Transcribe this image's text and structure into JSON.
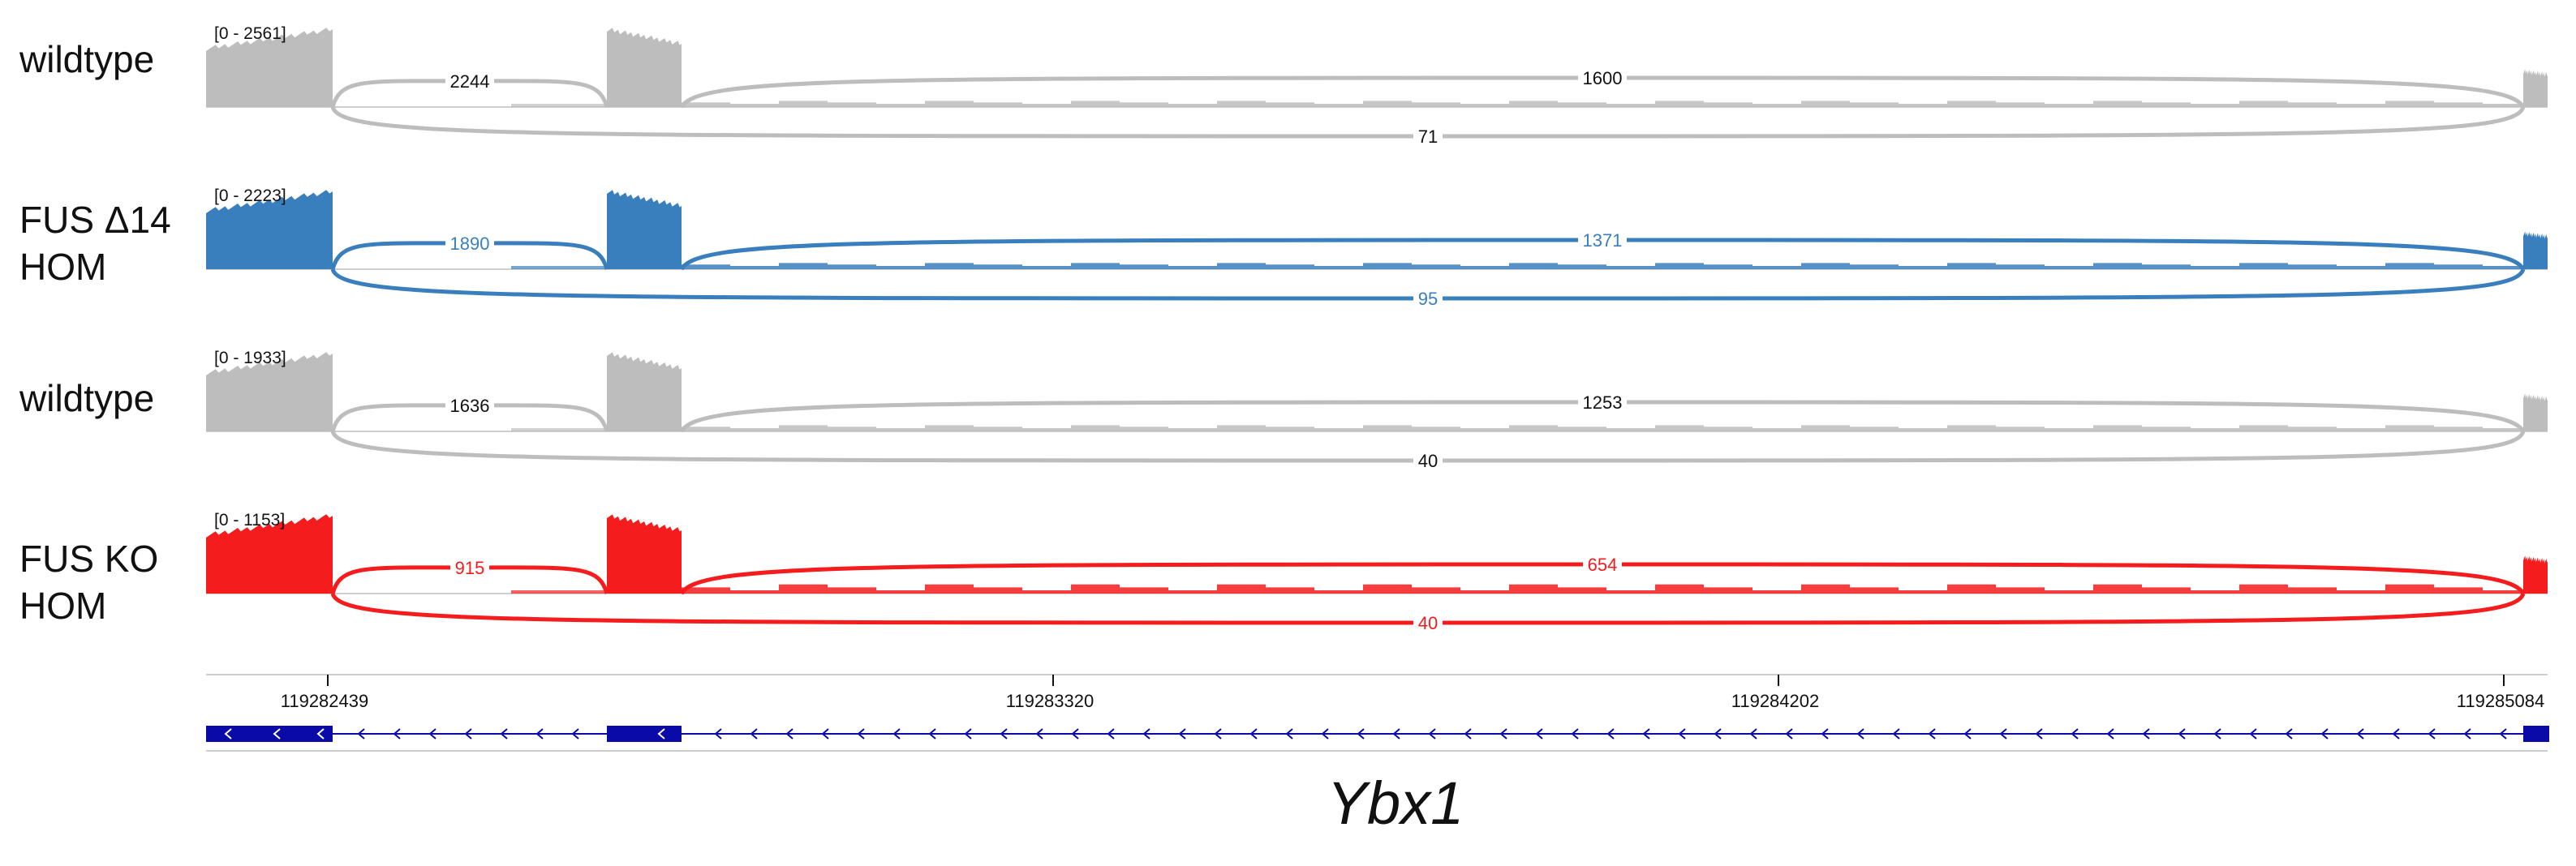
{
  "tracks": [
    {
      "label": "wildtype",
      "range": "[0 - 2561]",
      "color": "#bdbdbd",
      "junctions": {
        "j1": "2244",
        "j2": "1600",
        "j3": "71"
      }
    },
    {
      "label": "FUS Δ14\nHOM",
      "range": "[0 - 2223]",
      "color": "#3a7fbd",
      "junctions": {
        "j1": "1890",
        "j2": "1371",
        "j3": "95"
      }
    },
    {
      "label": "wildtype",
      "range": "[0 - 1933]",
      "color": "#bdbdbd",
      "junctions": {
        "j1": "1636",
        "j2": "1253",
        "j3": "40"
      }
    },
    {
      "label": "FUS KO\nHOM",
      "range": "[0 - 1153]",
      "color": "#f41c1c",
      "junctions": {
        "j1": "915",
        "j2": "654",
        "j3": "40"
      }
    }
  ],
  "ruler": {
    "ticks": [
      "119282439",
      "119283320",
      "119284202",
      "119285084"
    ]
  },
  "gene": {
    "name": "Ybx1",
    "color": "#0a0aa8"
  }
}
